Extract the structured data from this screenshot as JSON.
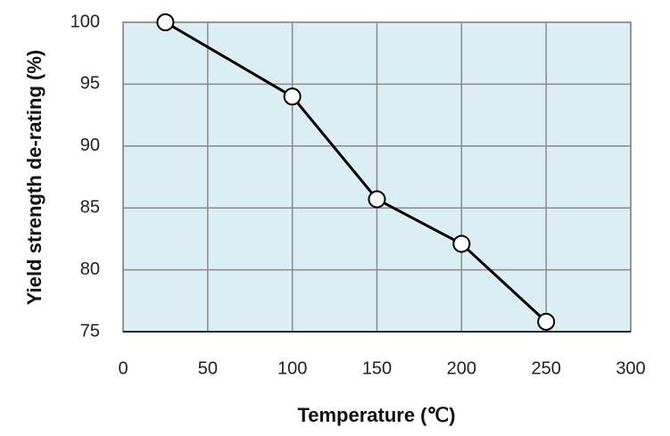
{
  "chart_data": {
    "type": "line",
    "x_label": "Temperature (℃)",
    "y_label": "Yield strength de-rating (%)",
    "x": [
      25,
      100,
      150,
      200,
      250
    ],
    "series": [
      {
        "color": "#000000",
        "values": [
          100,
          94,
          85.7,
          82.1,
          75.8
        ]
      }
    ],
    "xlim": [
      0,
      300
    ],
    "xticks": [
      0,
      50,
      100,
      150,
      200,
      250,
      300
    ],
    "ylim": [
      75,
      100
    ],
    "yticks": [
      75,
      80,
      85,
      90,
      95,
      100
    ],
    "grid": true,
    "background": "#dbeef4"
  }
}
